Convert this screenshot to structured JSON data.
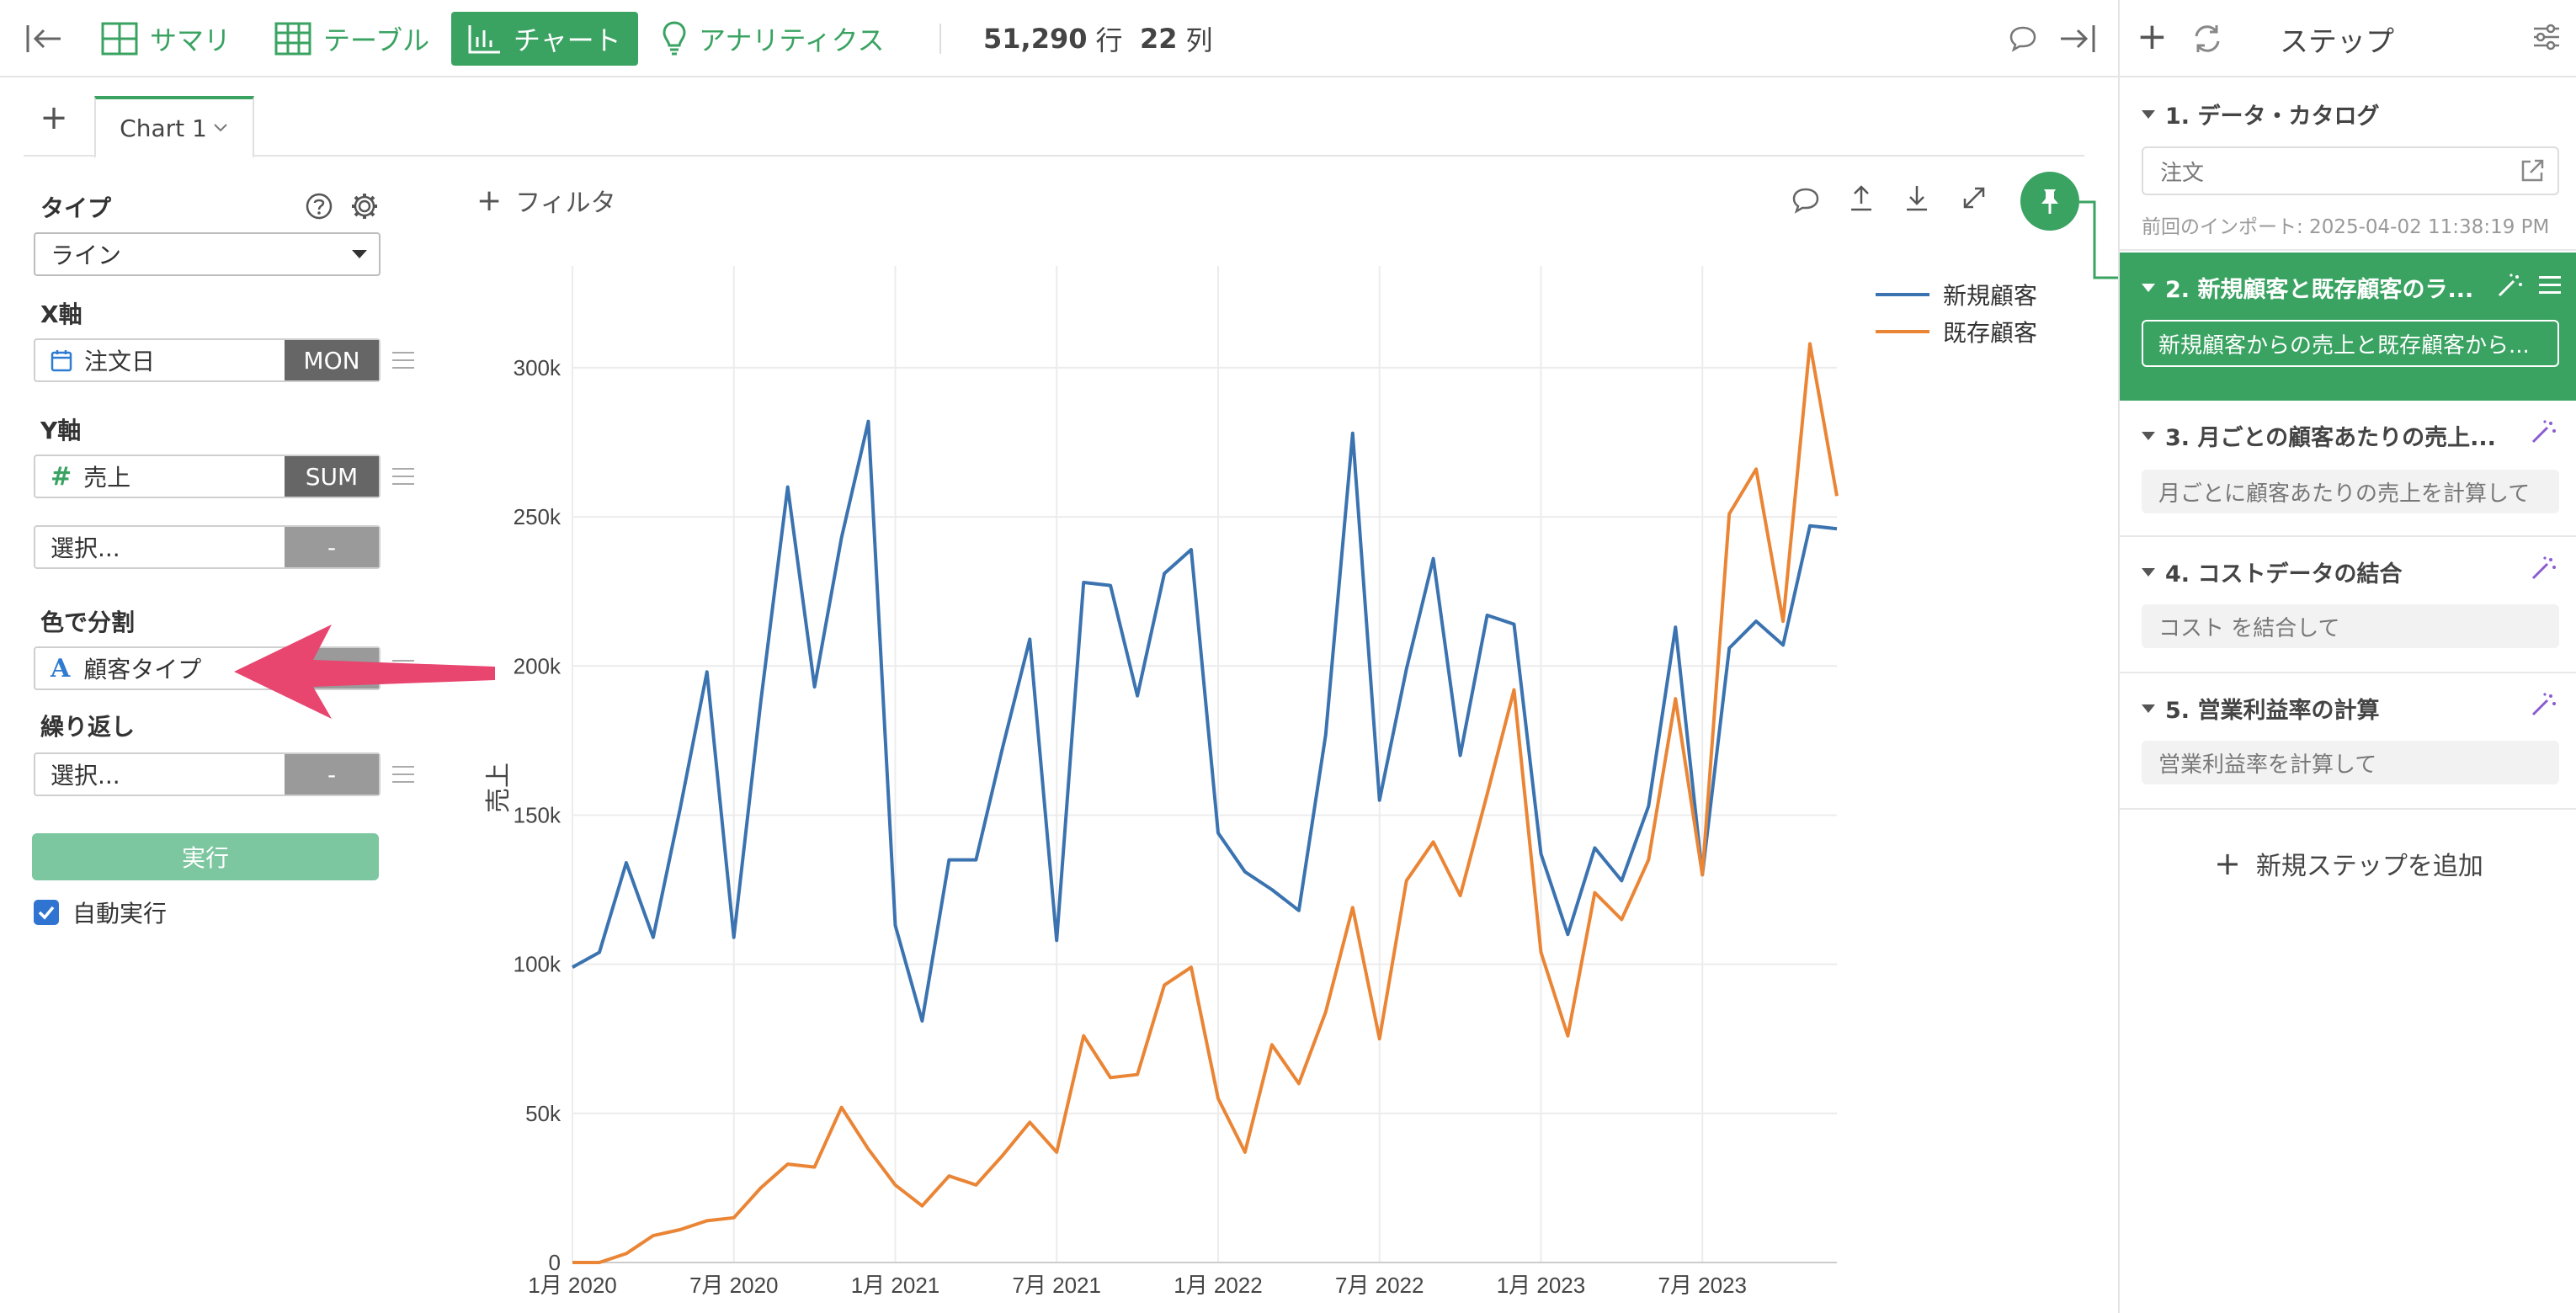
{
  "toolbar": {
    "tabs": [
      {
        "label": "サマリ"
      },
      {
        "label": "テーブル"
      },
      {
        "label": "チャート"
      },
      {
        "label": "アナリティクス"
      }
    ],
    "rows_value": "51,290",
    "rows_unit": "行",
    "cols_value": "22",
    "cols_unit": "列"
  },
  "chart_tabs": {
    "add_label": "+",
    "active_tab": "Chart 1"
  },
  "config": {
    "type_label": "タイプ",
    "type_value": "ライン",
    "x_label": "X軸",
    "x_field": "注文日",
    "x_agg": "MON",
    "y_label": "Y軸",
    "y_field": "売上",
    "y_agg": "SUM",
    "y2_placeholder": "選択...",
    "y2_agg": "-",
    "color_label": "色で分割",
    "color_field": "顧客タイプ",
    "repeat_label": "繰り返し",
    "repeat_placeholder": "選択...",
    "repeat_agg": "-",
    "run_label": "実行",
    "auto_run_label": "自動実行",
    "auto_run_checked": true
  },
  "chart_toolbar": {
    "filter_label": "フィルタ"
  },
  "chart_data": {
    "type": "line",
    "ylabel": "売上",
    "xlabel": "",
    "ylim": [
      0,
      320000
    ],
    "y_ticks": [
      0,
      50000,
      100000,
      150000,
      200000,
      250000,
      300000
    ],
    "y_tick_labels": [
      "0",
      "50k",
      "100k",
      "150k",
      "200k",
      "250k",
      "300k"
    ],
    "x_tick_labels": [
      "1月 2020",
      "7月 2020",
      "1月 2021",
      "7月 2021",
      "1月 2022",
      "7月 2022",
      "1月 2023",
      "7月 2023"
    ],
    "x_tick_index": [
      0,
      6,
      12,
      18,
      24,
      30,
      36,
      42
    ],
    "legend_position": "top-right",
    "grid": true,
    "series": [
      {
        "name": "新規顧客",
        "color": "#3a73b0",
        "values": [
          99000,
          104000,
          134000,
          109000,
          152000,
          198000,
          109000,
          188000,
          260000,
          193000,
          243000,
          282000,
          113000,
          81000,
          135000,
          135000,
          173000,
          209000,
          108000,
          228000,
          227000,
          190000,
          231000,
          239000,
          144000,
          131000,
          125000,
          118000,
          177000,
          278000,
          155000,
          199000,
          236000,
          170000,
          217000,
          214000,
          137000,
          110000,
          139000,
          128000,
          153000,
          213000,
          130000,
          206000,
          215000,
          207000,
          247000,
          246000
        ]
      },
      {
        "name": "既存顧客",
        "color": "#ea8535",
        "values": [
          0,
          0,
          3000,
          9000,
          11000,
          14000,
          15000,
          25000,
          33000,
          32000,
          52000,
          38000,
          26000,
          19000,
          29000,
          26000,
          36000,
          47000,
          37000,
          76000,
          62000,
          63000,
          93000,
          99000,
          55000,
          37000,
          73000,
          60000,
          84000,
          119000,
          75000,
          128000,
          141000,
          123000,
          157000,
          192000,
          104000,
          76000,
          124000,
          115000,
          135000,
          189000,
          130000,
          251000,
          266000,
          215000,
          308000,
          257000
        ]
      }
    ]
  },
  "steps_panel": {
    "title": "ステップ",
    "steps": [
      {
        "title": "1. データ・カタログ",
        "desc": "注文",
        "meta": "前回のインポート: 2025-04-02 11:38:19 PM"
      },
      {
        "title": "2. 新規顧客と既存顧客のラ...",
        "desc": "新規顧客からの売上と既存顧客から..."
      },
      {
        "title": "3. 月ごとの顧客あたりの売上...",
        "desc": "月ごとに顧客あたりの売上を計算して"
      },
      {
        "title": "4. コストデータの結合",
        "desc": "コスト を結合して"
      },
      {
        "title": "5. 営業利益率の計算",
        "desc": "営業利益率を計算して"
      }
    ],
    "add_step_label": "新規ステップを追加"
  },
  "colors": {
    "accent": "#3aa362",
    "annotation_arrow": "#e8456f"
  }
}
